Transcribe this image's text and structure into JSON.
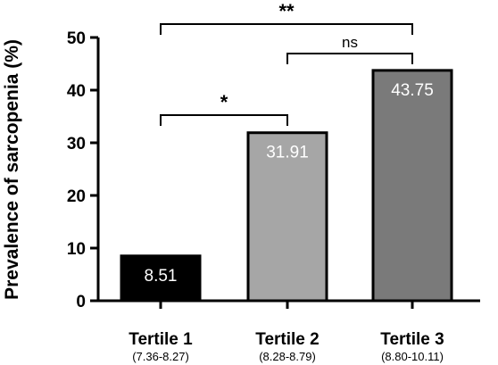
{
  "chart_data": {
    "type": "bar",
    "ylabel": "Prevalence of sarcopenia (%)",
    "ylim": [
      0,
      50
    ],
    "yticks": [
      0,
      10,
      20,
      30,
      40,
      50
    ],
    "categories": [
      "Tertile 1",
      "Tertile 2",
      "Tertile 3"
    ],
    "category_ranges": [
      "(7.36-8.27)",
      "(8.28-8.79)",
      "(8.80-10.11)"
    ],
    "values": [
      8.51,
      31.91,
      43.75
    ],
    "value_labels": [
      "8.51",
      "31.91",
      "43.75"
    ],
    "bar_colors": [
      "#000000",
      "#a6a6a6",
      "#7a7a7a"
    ],
    "significance": [
      {
        "from": 0,
        "to": 2,
        "label": "**"
      },
      {
        "from": 1,
        "to": 2,
        "label": "ns"
      },
      {
        "from": 0,
        "to": 1,
        "label": "*"
      }
    ],
    "grid": false
  }
}
